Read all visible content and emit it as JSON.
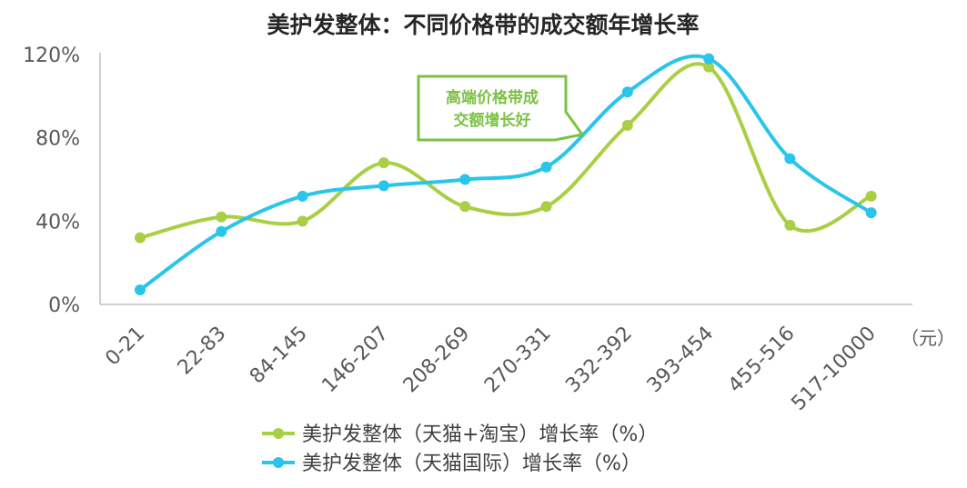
{
  "chart_data": {
    "type": "line",
    "title": "美护发整体：不同价格带的成交额年增长率",
    "categories": [
      "0-21",
      "22-83",
      "84-145",
      "146-207",
      "208-269",
      "270-331",
      "332-392",
      "393-454",
      "455-516",
      "517-10000"
    ],
    "x_unit": "（元）",
    "y_ticks": [
      "0%",
      "40%",
      "80%",
      "120%"
    ],
    "ylim": [
      0,
      120
    ],
    "series": [
      {
        "name": "美护发整体（天猫+淘宝）增长率（%）",
        "color": "#a9cf45",
        "values": [
          32,
          42,
          40,
          68,
          47,
          47,
          86,
          114,
          38,
          52
        ]
      },
      {
        "name": "美护发整体（天猫国际）增长率（%）",
        "color": "#29c5ea",
        "values": [
          7,
          35,
          52,
          57,
          60,
          66,
          102,
          118,
          70,
          44
        ]
      }
    ],
    "annotation": {
      "lines": [
        "高端价格带成",
        "交额增长好"
      ],
      "color": "#7cc144"
    },
    "grid": false,
    "legend_position": "bottom"
  }
}
